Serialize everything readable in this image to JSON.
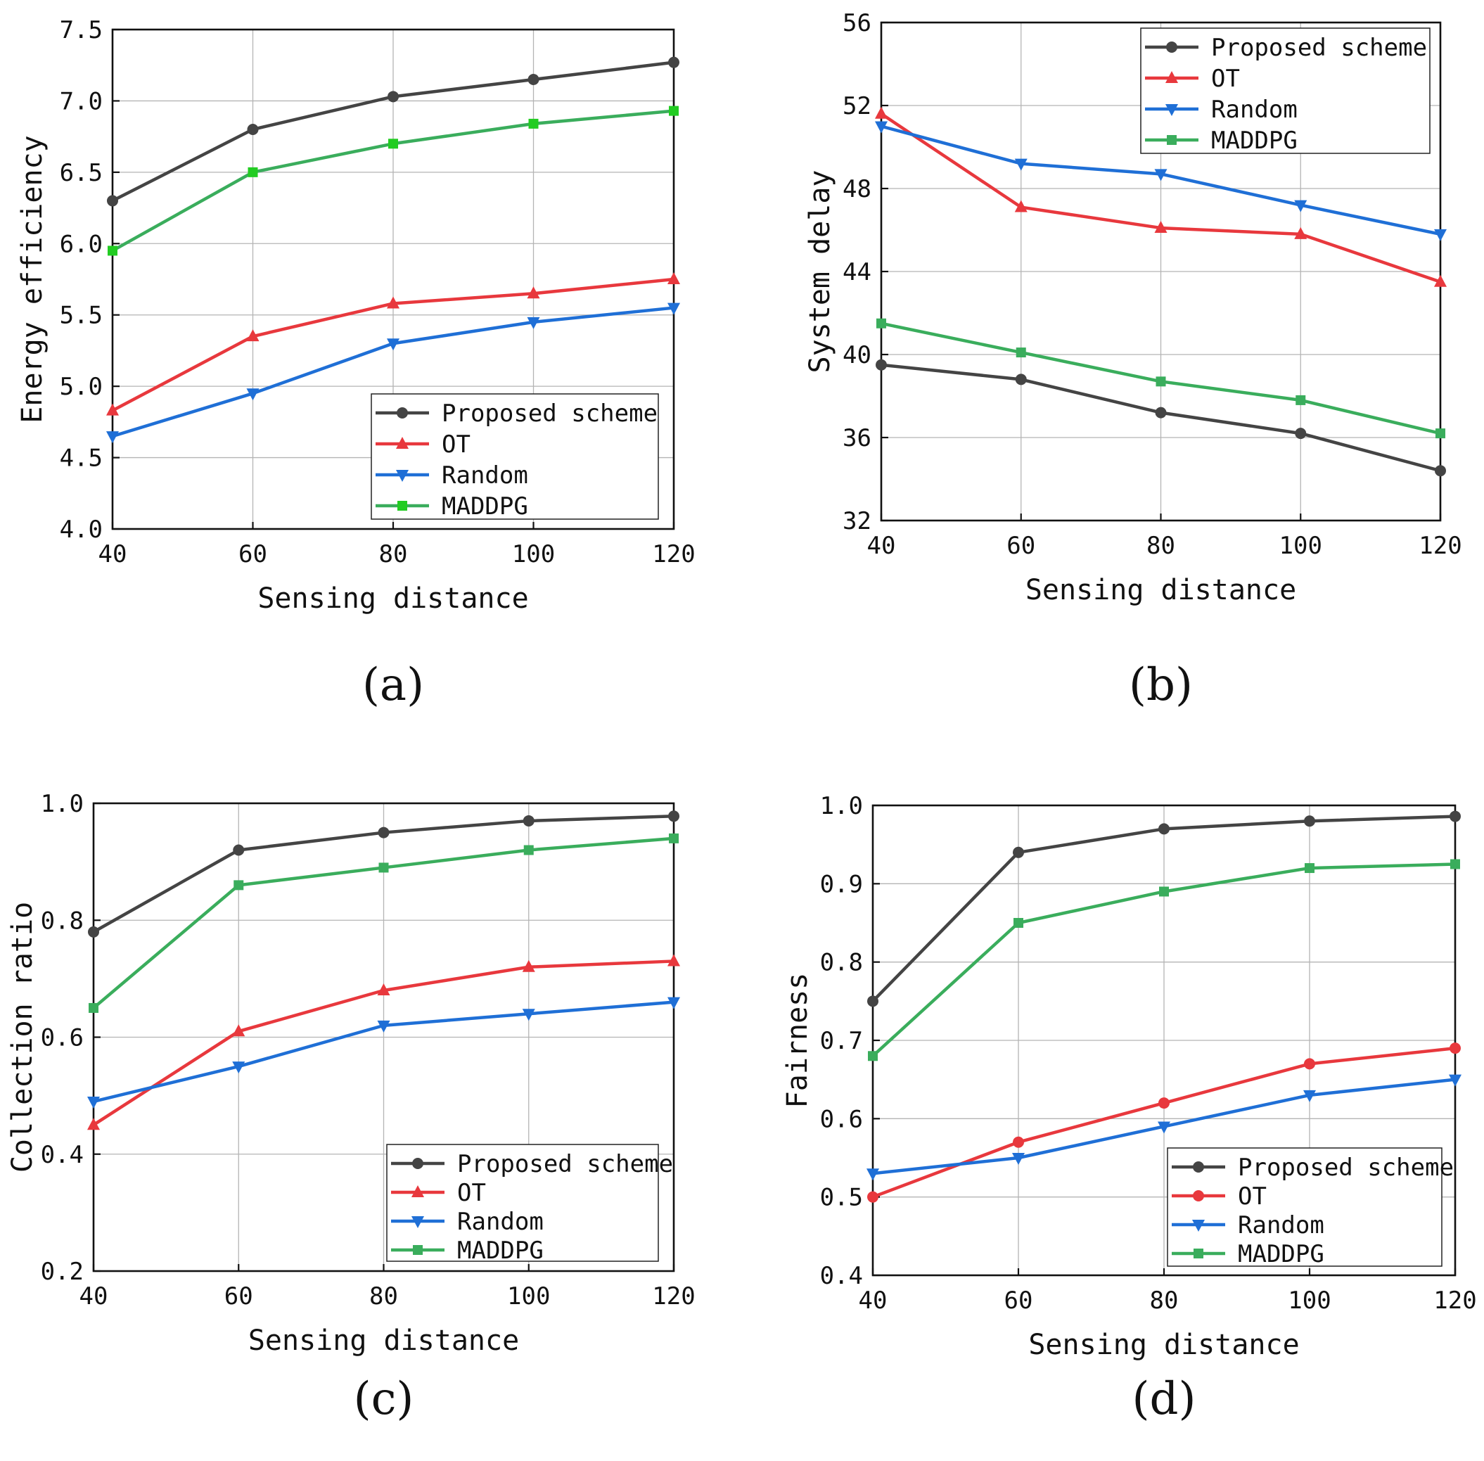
{
  "colors": {
    "proposed": "#444444",
    "ot": "#e8383d",
    "random": "#1f6fd6",
    "maddpg": "#3aad5c",
    "maddpg_marker_a": "#22cc22"
  },
  "chart_data": [
    {
      "type": "line",
      "panel": "(a)",
      "xlabel": "Sensing distance",
      "ylabel": "Energy efficiency",
      "x": [
        40,
        60,
        80,
        100,
        120
      ],
      "xlim": [
        40,
        120
      ],
      "ylim": [
        4.0,
        7.5
      ],
      "xticks": [
        "40",
        "60",
        "80",
        "100",
        "120"
      ],
      "yticks": [
        "4.0",
        "4.5",
        "5.0",
        "5.5",
        "6.0",
        "6.5",
        "7.0",
        "7.5"
      ],
      "grid": true,
      "legend_position": "bottom-right",
      "series": [
        {
          "name": "Proposed scheme",
          "key": "proposed",
          "marker": "circle",
          "values": [
            6.3,
            6.8,
            7.03,
            7.15,
            7.27
          ]
        },
        {
          "name": "OT",
          "key": "ot",
          "marker": "triangle-up",
          "values": [
            4.83,
            5.35,
            5.58,
            5.65,
            5.75
          ]
        },
        {
          "name": "Random",
          "key": "random",
          "marker": "triangle-down",
          "values": [
            4.65,
            4.95,
            5.3,
            5.45,
            5.55
          ]
        },
        {
          "name": "MADDPG",
          "key": "maddpg",
          "marker": "square",
          "values": [
            5.95,
            6.5,
            6.7,
            6.84,
            6.93
          ]
        }
      ]
    },
    {
      "type": "line",
      "panel": "(b)",
      "xlabel": "Sensing distance",
      "ylabel": "System delay",
      "x": [
        40,
        60,
        80,
        100,
        120
      ],
      "xlim": [
        40,
        120
      ],
      "ylim": [
        32,
        56
      ],
      "xticks": [
        "40",
        "60",
        "80",
        "100",
        "120"
      ],
      "yticks": [
        "32",
        "36",
        "40",
        "44",
        "48",
        "52",
        "56"
      ],
      "grid": true,
      "legend_position": "top-right",
      "series": [
        {
          "name": "Proposed scheme",
          "key": "proposed",
          "marker": "circle",
          "values": [
            39.5,
            38.8,
            37.2,
            36.2,
            34.4
          ]
        },
        {
          "name": "OT",
          "key": "ot",
          "marker": "triangle-up",
          "values": [
            51.6,
            47.1,
            46.1,
            45.8,
            43.5
          ]
        },
        {
          "name": "Random",
          "key": "random",
          "marker": "triangle-down",
          "values": [
            51.0,
            49.2,
            48.7,
            47.2,
            45.8
          ]
        },
        {
          "name": "MADDPG",
          "key": "maddpg",
          "marker": "square",
          "values": [
            41.5,
            40.1,
            38.7,
            37.8,
            36.2
          ]
        }
      ]
    },
    {
      "type": "line",
      "panel": "(c)",
      "xlabel": "Sensing distance",
      "ylabel": "Collection ratio",
      "x": [
        40,
        60,
        80,
        100,
        120
      ],
      "xlim": [
        40,
        120
      ],
      "ylim": [
        0.2,
        1.0
      ],
      "xticks": [
        "40",
        "60",
        "80",
        "100",
        "120"
      ],
      "yticks": [
        "0.2",
        "0.4",
        "0.6",
        "0.8",
        "1.0"
      ],
      "grid": true,
      "legend_position": "bottom-right",
      "series": [
        {
          "name": "Proposed scheme",
          "key": "proposed",
          "marker": "circle",
          "values": [
            0.78,
            0.92,
            0.95,
            0.97,
            0.978
          ]
        },
        {
          "name": "OT",
          "key": "ot",
          "marker": "triangle-up",
          "values": [
            0.45,
            0.61,
            0.68,
            0.72,
            0.73
          ]
        },
        {
          "name": "Random",
          "key": "random",
          "marker": "triangle-down",
          "values": [
            0.49,
            0.55,
            0.62,
            0.64,
            0.66
          ]
        },
        {
          "name": "MADDPG",
          "key": "maddpg",
          "marker": "square",
          "values": [
            0.65,
            0.86,
            0.89,
            0.92,
            0.94
          ]
        }
      ]
    },
    {
      "type": "line",
      "panel": "(d)",
      "xlabel": "Sensing distance",
      "ylabel": "Fairness",
      "x": [
        40,
        60,
        80,
        100,
        120
      ],
      "xlim": [
        40,
        120
      ],
      "ylim": [
        0.4,
        1.0
      ],
      "xticks": [
        "40",
        "60",
        "80",
        "100",
        "120"
      ],
      "yticks": [
        "0.4",
        "0.5",
        "0.6",
        "0.7",
        "0.8",
        "0.9",
        "1.0"
      ],
      "grid": true,
      "legend_position": "bottom-right",
      "series": [
        {
          "name": "Proposed scheme",
          "key": "proposed",
          "marker": "circle",
          "values": [
            0.75,
            0.94,
            0.97,
            0.98,
            0.986
          ]
        },
        {
          "name": "OT",
          "key": "ot",
          "marker": "circle",
          "values": [
            0.5,
            0.57,
            0.62,
            0.67,
            0.69
          ]
        },
        {
          "name": "Random",
          "key": "random",
          "marker": "triangle-down",
          "values": [
            0.53,
            0.55,
            0.59,
            0.63,
            0.65
          ]
        },
        {
          "name": "MADDPG",
          "key": "maddpg",
          "marker": "square",
          "values": [
            0.68,
            0.85,
            0.89,
            0.92,
            0.925
          ]
        }
      ]
    }
  ]
}
